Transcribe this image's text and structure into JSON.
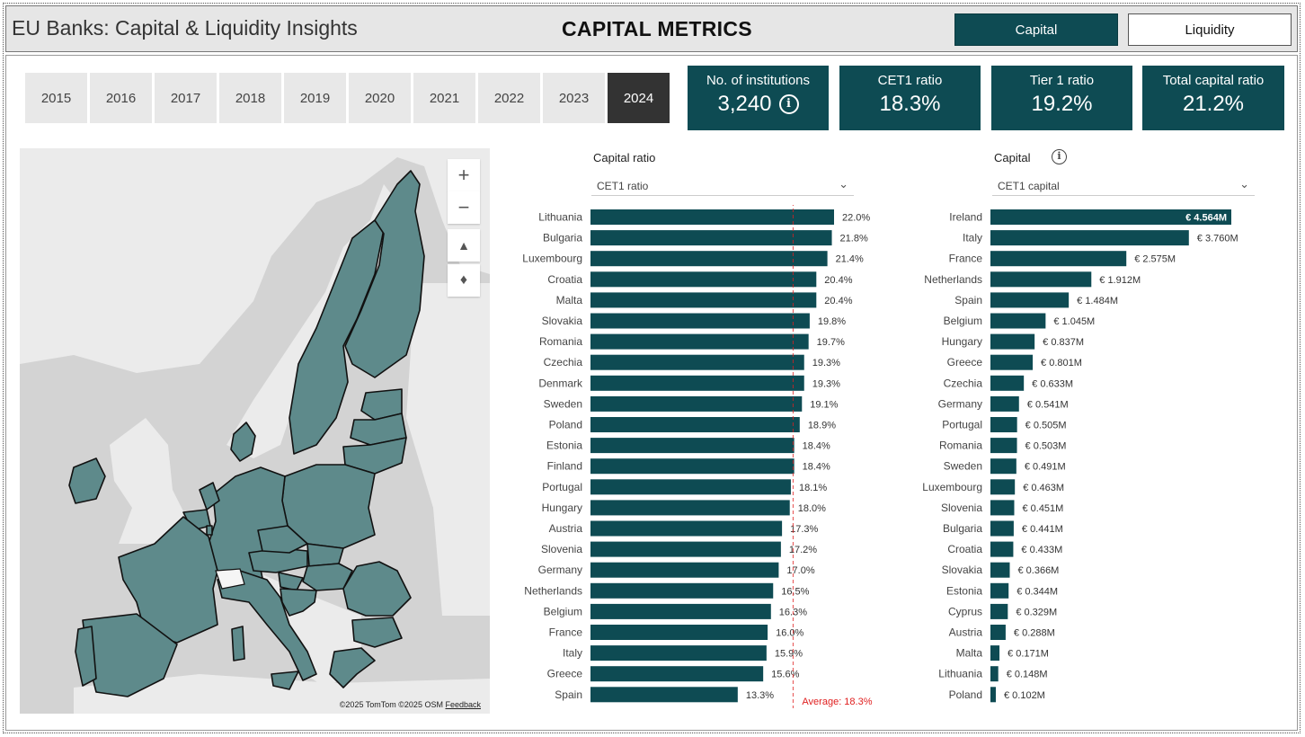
{
  "header": {
    "app_title": "EU Banks: Capital & Liquidity Insights",
    "page_title": "CAPITAL METRICS",
    "nav": [
      {
        "label": "Capital",
        "active": true
      },
      {
        "label": "Liquidity",
        "active": false
      }
    ]
  },
  "years": {
    "items": [
      "2015",
      "2016",
      "2017",
      "2018",
      "2019",
      "2020",
      "2021",
      "2022",
      "2023",
      "2024"
    ],
    "selected": "2024"
  },
  "kpis": [
    {
      "label": "No. of institutions",
      "value": "3,240",
      "icon": "info-icon"
    },
    {
      "label": "CET1 ratio",
      "value": "18.3%"
    },
    {
      "label": "Tier 1 ratio",
      "value": "19.2%"
    },
    {
      "label": "Total capital ratio",
      "value": "21.2%"
    }
  ],
  "map": {
    "controls": [
      "zoom-in-icon",
      "zoom-out-icon",
      "tilt-icon",
      "compass-icon"
    ],
    "credit": "©2025 TomTom  ©2025 OSM",
    "feedback": "Feedback",
    "colors": {
      "sea": "#d3d3d3",
      "land": "#ebebeb",
      "country": "#5e8a8b",
      "border": "#111111"
    }
  },
  "ratio_panel": {
    "label": "Capital ratio",
    "selected": "CET1 ratio"
  },
  "capital_panel": {
    "label": "Capital",
    "selected": "CET1 capital"
  },
  "chart_data": [
    {
      "type": "bar",
      "orientation": "horizontal",
      "title": "Capital ratio",
      "categories": [
        "Lithuania",
        "Bulgaria",
        "Luxembourg",
        "Croatia",
        "Malta",
        "Slovakia",
        "Romania",
        "Czechia",
        "Denmark",
        "Sweden",
        "Poland",
        "Estonia",
        "Finland",
        "Portugal",
        "Hungary",
        "Austria",
        "Slovenia",
        "Germany",
        "Netherlands",
        "Belgium",
        "France",
        "Italy",
        "Greece",
        "Spain"
      ],
      "values": [
        22.0,
        21.8,
        21.4,
        20.4,
        20.4,
        19.8,
        19.7,
        19.3,
        19.3,
        19.1,
        18.9,
        18.4,
        18.4,
        18.1,
        18.0,
        17.3,
        17.2,
        17.0,
        16.5,
        16.3,
        16.0,
        15.9,
        15.6,
        13.3
      ],
      "labels": [
        "22.0%",
        "21.8%",
        "21.4%",
        "20.4%",
        "20.4%",
        "19.8%",
        "19.7%",
        "19.3%",
        "19.3%",
        "19.1%",
        "18.9%",
        "18.4%",
        "18.4%",
        "18.1%",
        "18.0%",
        "17.3%",
        "17.2%",
        "17.0%",
        "16.5%",
        "16.3%",
        "16.0%",
        "15.9%",
        "15.6%",
        "13.3%"
      ],
      "average": 18.3,
      "average_label": "Average: 18.3%",
      "color": "#0e4b53",
      "average_color": "#e02020"
    },
    {
      "type": "bar",
      "orientation": "horizontal",
      "title": "Capital",
      "categories": [
        "Ireland",
        "Italy",
        "France",
        "Netherlands",
        "Spain",
        "Belgium",
        "Hungary",
        "Greece",
        "Czechia",
        "Germany",
        "Portugal",
        "Romania",
        "Sweden",
        "Luxembourg",
        "Slovenia",
        "Bulgaria",
        "Croatia",
        "Slovakia",
        "Estonia",
        "Cyprus",
        "Austria",
        "Malta",
        "Lithuania",
        "Poland"
      ],
      "values": [
        4.564,
        3.76,
        2.575,
        1.912,
        1.484,
        1.045,
        0.837,
        0.801,
        0.633,
        0.541,
        0.505,
        0.503,
        0.491,
        0.463,
        0.451,
        0.441,
        0.433,
        0.366,
        0.344,
        0.329,
        0.288,
        0.171,
        0.148,
        0.102
      ],
      "labels": [
        "€ 4.564M",
        "€ 3.760M",
        "€ 2.575M",
        "€ 1.912M",
        "€ 1.484M",
        "€ 1.045M",
        "€ 0.837M",
        "€ 0.801M",
        "€ 0.633M",
        "€ 0.541M",
        "€ 0.505M",
        "€ 0.503M",
        "€ 0.491M",
        "€ 0.463M",
        "€ 0.451M",
        "€ 0.441M",
        "€ 0.433M",
        "€ 0.366M",
        "€ 0.344M",
        "€ 0.329M",
        "€ 0.288M",
        "€ 0.171M",
        "€ 0.148M",
        "€ 0.102M"
      ],
      "color": "#0e4b53"
    }
  ]
}
